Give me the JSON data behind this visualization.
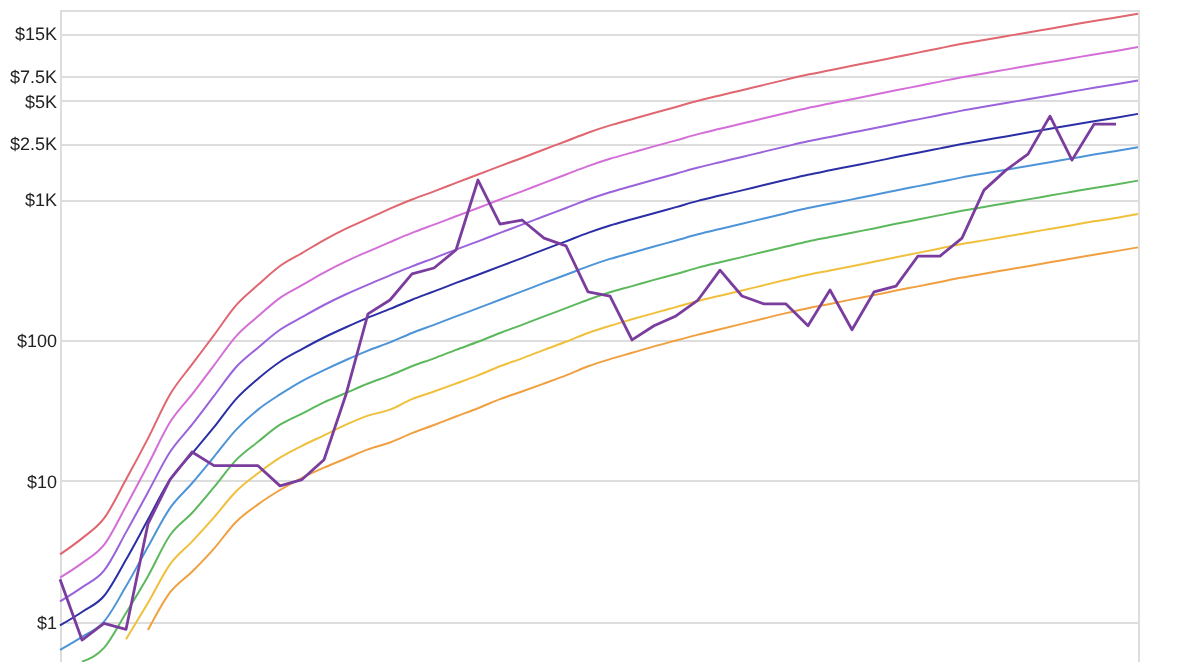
{
  "chart_data": {
    "type": "line",
    "log": "y",
    "grid": "y",
    "tick_labels": "y",
    "categories": [
      null,
      null,
      null,
      null,
      null,
      null,
      null,
      null,
      null,
      null,
      null,
      null,
      null,
      null,
      null,
      null,
      null,
      null,
      null,
      null,
      null,
      null,
      null,
      null,
      null,
      null,
      null,
      null,
      null,
      null,
      null,
      null,
      null,
      null,
      null,
      null,
      null,
      null,
      null,
      null,
      null,
      null,
      null,
      null,
      null,
      null,
      null,
      null,
      null,
      null
    ],
    "ylim": [
      0.5,
      22000
    ],
    "yticks": [
      {
        "value": 1,
        "label": "$1"
      },
      {
        "value": 10,
        "label": "$10"
      },
      {
        "value": 100,
        "label": "$100"
      },
      {
        "value": 1000,
        "label": "$1K"
      },
      {
        "value": 2500,
        "label": "$2.5K"
      },
      {
        "value": 5000,
        "label": "$5K"
      },
      {
        "value": 7500,
        "label": "$7.5K"
      },
      {
        "value": 15000,
        "label": "$15K"
      }
    ],
    "series": [
      {
        "color": "#7a3d9e",
        "values": [
          2.0,
          0.74,
          0.97,
          0.88,
          4.95,
          10.2,
          16,
          12.8,
          12.8,
          12.8,
          9.2,
          10.2,
          14.1,
          41,
          153,
          192,
          294,
          324,
          435,
          1365,
          665,
          710,
          528,
          465,
          219,
          205,
          100,
          126,
          148,
          192,
          313,
          205,
          180,
          180,
          126,
          226,
          118,
          219,
          241,
          394,
          394,
          528,
          1158,
          1606,
          2085,
          3880,
          1890,
          3400,
          3400,
          null
        ]
      },
      {
        "color": "#e06670",
        "values": [
          3.0,
          3.9,
          5.4,
          10.2,
          20,
          41,
          67,
          108,
          176,
          246,
          335,
          414,
          512,
          617,
          726,
          855,
          993,
          1135,
          1303,
          1493,
          1714,
          1959,
          2249,
          2576,
          2958,
          3334,
          3690,
          4083,
          4508,
          4989,
          5445,
          5929,
          6471,
          7047,
          7656,
          8222,
          8831,
          9484,
          10200,
          10960,
          11780,
          12650,
          13460,
          14320,
          15240,
          16220,
          17260,
          18370,
          19450,
          20700
        ]
      },
      {
        "color": "#d46fd8",
        "values": [
          2.05,
          2.6,
          3.5,
          6.6,
          13,
          26,
          41,
          66,
          106,
          147,
          199,
          245,
          301,
          361,
          424,
          495,
          575,
          658,
          755,
          865,
          993,
          1135,
          1303,
          1493,
          1714,
          1932,
          2138,
          2366,
          2612,
          2891,
          3155,
          3436,
          3750,
          4083,
          4436,
          4764,
          5117,
          5495,
          5916,
          6353,
          6823,
          7328,
          7798,
          8299,
          8831,
          9397,
          10000,
          10640,
          11270,
          12000
        ]
      },
      {
        "color": "#9a63dc",
        "values": [
          1.39,
          1.75,
          2.3,
          4.3,
          8.3,
          16,
          25,
          40,
          64,
          88,
          118,
          145,
          177,
          211,
          247,
          287,
          333,
          381,
          438,
          501,
          575,
          658,
          755,
          865,
          993,
          1119,
          1239,
          1371,
          1514,
          1675,
          1828,
          1991,
          2173,
          2366,
          2570,
          2761,
          2965,
          3184,
          3428,
          3681,
          3954,
          4246,
          4519,
          4808,
          5117,
          5445,
          5794,
          6166,
          6531,
          6950
        ]
      },
      {
        "color": "#2b2fa6",
        "values": [
          0.94,
          1.17,
          1.52,
          2.75,
          5.3,
          10.2,
          15.6,
          24,
          38,
          53,
          70,
          86,
          104,
          123,
          144,
          166,
          193,
          221,
          254,
          290,
          333,
          381,
          438,
          501,
          575,
          649,
          718,
          794,
          877,
          971,
          1059,
          1153,
          1259,
          1371,
          1489,
          1600,
          1718,
          1845,
          1986,
          2133,
          2291,
          2460,
          2618,
          2786,
          2965,
          3155,
          3357,
          3573,
          3784,
          4027
        ]
      },
      {
        "color": "#4d94d8",
        "values": [
          0.63,
          0.78,
          1.0,
          1.78,
          3.4,
          6.4,
          9.6,
          14.8,
          23,
          32,
          41,
          51,
          61,
          72,
          84,
          96,
          112,
          128,
          147,
          168,
          193,
          221,
          254,
          290,
          333,
          376,
          416,
          460,
          508,
          562,
          614,
          668,
          729,
          794,
          863,
          927,
          995,
          1069,
          1151,
          1236,
          1327,
          1426,
          1517,
          1614,
          1718,
          1828,
          1945,
          2070,
          2193,
          2333
        ]
      },
      {
        "color": "#5cb85c",
        "values": [
          null,
          0.52,
          0.65,
          1.15,
          2.1,
          4.1,
          5.9,
          9.0,
          14,
          18.9,
          25,
          30,
          36,
          42,
          49,
          56,
          65,
          74,
          85,
          97,
          112,
          128,
          147,
          168,
          193,
          218,
          241,
          267,
          294,
          326,
          356,
          387,
          423,
          460,
          500,
          537,
          577,
          619,
          667,
          716,
          769,
          826,
          879,
          935,
          995,
          1059,
          1127,
          1199,
          1271,
          1352
        ]
      },
      {
        "color": "#f0c03c",
        "values": [
          null,
          null,
          null,
          0.75,
          1.36,
          2.55,
          3.7,
          5.5,
          8.4,
          11.3,
          14.6,
          17.7,
          21,
          25,
          29,
          32,
          38,
          43,
          49,
          56,
          65,
          74,
          85,
          97,
          112,
          126,
          140,
          155,
          171,
          189,
          206,
          224,
          245,
          267,
          290,
          311,
          334,
          359,
          386,
          415,
          446,
          479,
          509,
          542,
          577,
          614,
          653,
          695,
          735,
          783
        ]
      },
      {
        "color": "#f0a040",
        "values": [
          null,
          null,
          null,
          null,
          0.87,
          1.61,
          2.26,
          3.3,
          5.1,
          6.8,
          8.6,
          10.5,
          12.4,
          14.4,
          16.7,
          18.7,
          21.8,
          24.9,
          28.6,
          32.7,
          38,
          43,
          49,
          56,
          65,
          73,
          81,
          90,
          99,
          109,
          119,
          130,
          142,
          155,
          168,
          180,
          194,
          208,
          224,
          240,
          258,
          277,
          295,
          314,
          334,
          356,
          378,
          403,
          427,
          454
        ]
      }
    ]
  }
}
